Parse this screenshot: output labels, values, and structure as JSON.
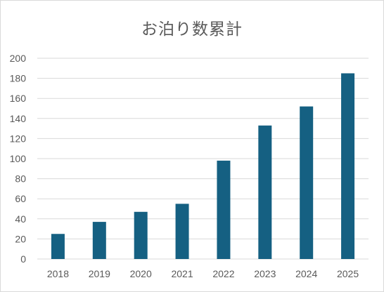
{
  "chart_data": {
    "type": "bar",
    "title": "お泊り数累計",
    "xlabel": "",
    "ylabel": "",
    "categories": [
      "2018",
      "2019",
      "2020",
      "2021",
      "2022",
      "2023",
      "2024",
      "2025"
    ],
    "values": [
      25,
      37,
      47,
      55,
      98,
      133,
      152,
      185
    ],
    "ylim": [
      0,
      200
    ],
    "yticks": [
      "0",
      "20",
      "40",
      "60",
      "80",
      "100",
      "120",
      "140",
      "160",
      "180",
      "200"
    ],
    "grid": true,
    "legend": "none",
    "bar_color": "#156082"
  }
}
